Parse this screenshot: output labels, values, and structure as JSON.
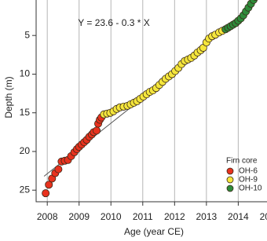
{
  "chart_data": {
    "type": "scatter",
    "x_label": "Age (year CE)",
    "y_label": "Depth (m)",
    "annotation": "Y = 23.6 - 0.3 * X",
    "legend_title": "Firn core",
    "legend": "lower right",
    "xlim": [
      2007.65,
      2015.15
    ],
    "xticks": [
      2008,
      2009,
      2010,
      2011,
      2012,
      2013,
      2014,
      2015
    ],
    "ylim": [
      -0.5,
      26.5
    ],
    "yticks": [
      0,
      5,
      10,
      15,
      20,
      25
    ],
    "y_inverted": true,
    "grid": "x",
    "fit_line": {
      "color": "#555555",
      "x": [
        2007.9,
        2011.85
      ],
      "y": [
        23.2,
        10.3
      ]
    },
    "series": [
      {
        "name": "OH-6",
        "color": "#e8321e",
        "x": [
          2007.95,
          2008.05,
          2008.15,
          2008.25,
          2008.35,
          2008.45,
          2008.55,
          2008.65,
          2008.75,
          2008.85,
          2008.93,
          2009.0,
          2009.08,
          2009.16,
          2009.24,
          2009.32,
          2009.4,
          2009.46,
          2009.55,
          2009.6,
          2009.65,
          2009.7
        ],
        "values": [
          25.4,
          24.3,
          23.5,
          22.8,
          22.3,
          21.3,
          21.2,
          21.1,
          20.6,
          20.1,
          19.7,
          19.4,
          19.1,
          18.8,
          18.5,
          18.1,
          17.8,
          17.5,
          17.3,
          16.4,
          15.9,
          15.6
        ]
      },
      {
        "name": "OH-9",
        "color": "#f5e63c",
        "x": [
          2009.78,
          2009.88,
          2009.98,
          2010.08,
          2010.18,
          2010.28,
          2010.4,
          2010.52,
          2010.62,
          2010.72,
          2010.82,
          2010.92,
          2011.02,
          2011.12,
          2011.22,
          2011.32,
          2011.42,
          2011.52,
          2011.62,
          2011.72,
          2011.82,
          2011.92,
          2012.02,
          2012.12,
          2012.22,
          2012.32,
          2012.42,
          2012.52,
          2012.62,
          2012.72,
          2012.82,
          2012.9,
          2013.0,
          2013.08,
          2013.18,
          2013.28,
          2013.4,
          2013.5
        ],
        "values": [
          15.2,
          15.1,
          15.0,
          14.8,
          14.5,
          14.3,
          14.2,
          14.1,
          13.9,
          13.7,
          13.5,
          13.2,
          12.9,
          12.6,
          12.3,
          12.1,
          11.8,
          11.4,
          11.0,
          10.6,
          10.3,
          10.0,
          9.6,
          9.2,
          8.7,
          8.3,
          8.1,
          7.9,
          7.6,
          7.2,
          6.9,
          6.6,
          5.9,
          5.4,
          5.1,
          4.9,
          4.6,
          4.4
        ]
      },
      {
        "name": "OH-10",
        "color": "#2e8b3a",
        "x": [
          2013.6,
          2013.68,
          2013.76,
          2013.84,
          2013.92,
          2014.0,
          2014.08,
          2014.16,
          2014.24,
          2014.32,
          2014.4,
          2014.48,
          2014.55
        ],
        "values": [
          4.2,
          4.0,
          3.8,
          3.6,
          3.4,
          3.1,
          2.8,
          2.4,
          1.9,
          1.4,
          0.9,
          0.4,
          0.0
        ]
      }
    ]
  }
}
